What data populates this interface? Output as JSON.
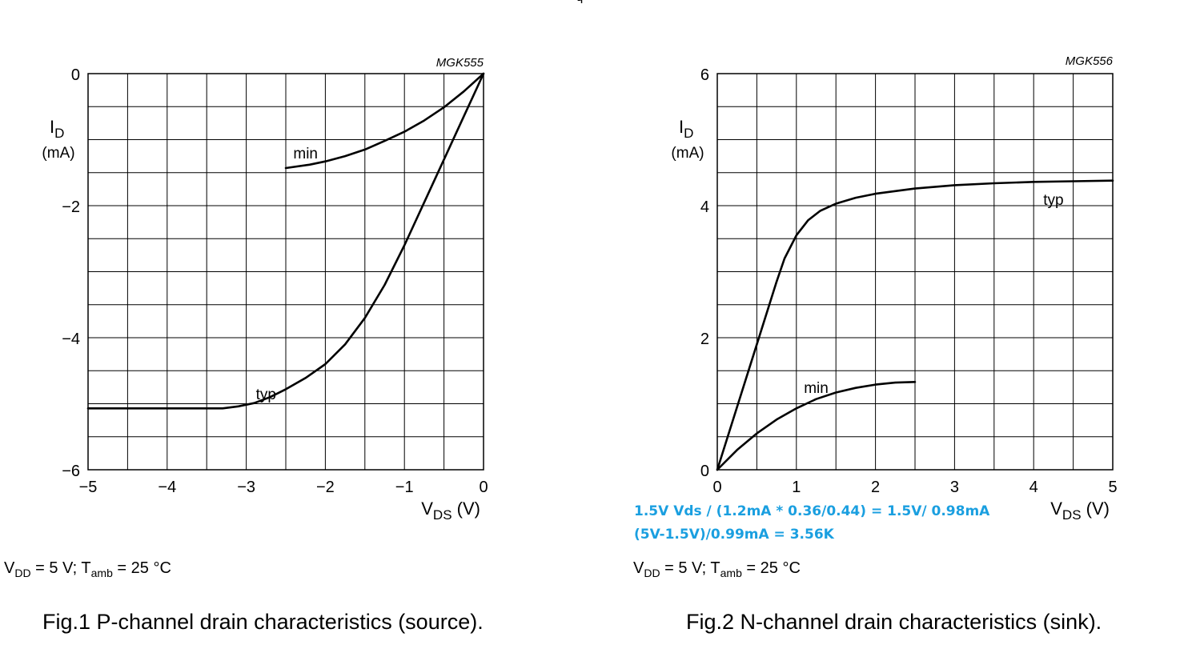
{
  "top_fragment": "ч",
  "chart_data": [
    {
      "type": "line",
      "id": "MGK555",
      "code": "MGK555",
      "ylabel_main": "I",
      "ylabel_sub": "D",
      "ylabel_unit": "(mA)",
      "xlabel_main": "V",
      "xlabel_sub": "DS",
      "xlabel_unit": " (V)",
      "xlim": [
        -5,
        0
      ],
      "ylim": [
        -6,
        0
      ],
      "xticks": [
        -5,
        -4,
        -3,
        -2,
        -1,
        0
      ],
      "xtick_labels": [
        "−5",
        "−4",
        "−3",
        "−2",
        "−1",
        "0"
      ],
      "yticks": [
        -6,
        -4,
        -2,
        0
      ],
      "ytick_labels": [
        "−6",
        "−4",
        "−2",
        "0"
      ],
      "grid_x_step": 0.5,
      "grid_y_step": 0.5,
      "series": [
        {
          "name": "min",
          "label": "min",
          "label_at": [
            -2.25,
            -1.2
          ],
          "x": [
            -2.5,
            -2.2,
            -2.0,
            -1.75,
            -1.5,
            -1.25,
            -1.0,
            -0.75,
            -0.5,
            -0.25,
            0
          ],
          "y": [
            -1.43,
            -1.38,
            -1.33,
            -1.25,
            -1.15,
            -1.02,
            -0.88,
            -0.71,
            -0.51,
            -0.27,
            0
          ]
        },
        {
          "name": "typ",
          "label": "typ",
          "label_at": [
            -2.75,
            -4.85
          ],
          "x": [
            -5.0,
            -3.3,
            -3.1,
            -2.9,
            -2.7,
            -2.5,
            -2.25,
            -2.0,
            -1.75,
            -1.5,
            -1.25,
            -1.0,
            -0.75,
            -0.5,
            -0.25,
            0
          ],
          "y": [
            -5.07,
            -5.07,
            -5.04,
            -4.99,
            -4.9,
            -4.78,
            -4.61,
            -4.4,
            -4.1,
            -3.7,
            -3.2,
            -2.6,
            -1.95,
            -1.3,
            -0.65,
            0
          ]
        }
      ]
    },
    {
      "type": "line",
      "id": "MGK556",
      "code": "MGK556",
      "ylabel_main": "I",
      "ylabel_sub": "D",
      "ylabel_unit": "(mA)",
      "xlabel_main": "V",
      "xlabel_sub": "DS",
      "xlabel_unit": " (V)",
      "xlim": [
        0,
        5
      ],
      "ylim": [
        0,
        6
      ],
      "xticks": [
        0,
        1,
        2,
        3,
        4,
        5
      ],
      "xtick_labels": [
        "0",
        "1",
        "2",
        "3",
        "4",
        "5"
      ],
      "yticks": [
        0,
        2,
        4,
        6
      ],
      "ytick_labels": [
        "0",
        "2",
        "4",
        "6"
      ],
      "grid_x_step": 0.5,
      "grid_y_step": 0.5,
      "series": [
        {
          "name": "typ",
          "label": "typ",
          "label_at": [
            4.25,
            4.1
          ],
          "x": [
            0,
            0.25,
            0.5,
            0.75,
            0.85,
            1.0,
            1.15,
            1.3,
            1.5,
            1.75,
            2.0,
            2.5,
            3.0,
            3.5,
            4.0,
            4.5,
            5.0
          ],
          "y": [
            0,
            0.95,
            1.9,
            2.85,
            3.2,
            3.55,
            3.78,
            3.92,
            4.03,
            4.12,
            4.18,
            4.26,
            4.31,
            4.34,
            4.36,
            4.37,
            4.38
          ]
        },
        {
          "name": "min",
          "label": "min",
          "label_at": [
            1.25,
            1.25
          ],
          "x": [
            0,
            0.25,
            0.5,
            0.75,
            1.0,
            1.25,
            1.5,
            1.75,
            2.0,
            2.25,
            2.5
          ],
          "y": [
            0,
            0.3,
            0.55,
            0.76,
            0.93,
            1.07,
            1.17,
            1.24,
            1.29,
            1.32,
            1.33
          ]
        }
      ]
    }
  ],
  "notes": {
    "line1": "1.5V Vds / (1.2mA * 0.36/0.44) = 1.5V/ 0.98mA",
    "line2": "(5V-1.5V)/0.99mA = 3.56K"
  },
  "conditions": {
    "vdd_sym": "V",
    "vdd_sub": "DD",
    "vdd_val": " = 5 V; T",
    "tamb_sub": "amb",
    "tamb_val": " = 25 °C"
  },
  "captions": {
    "fig1": "Fig.1  P-channel drain characteristics (source).",
    "fig2": "Fig.2  N-channel drain characteristics (sink)."
  }
}
